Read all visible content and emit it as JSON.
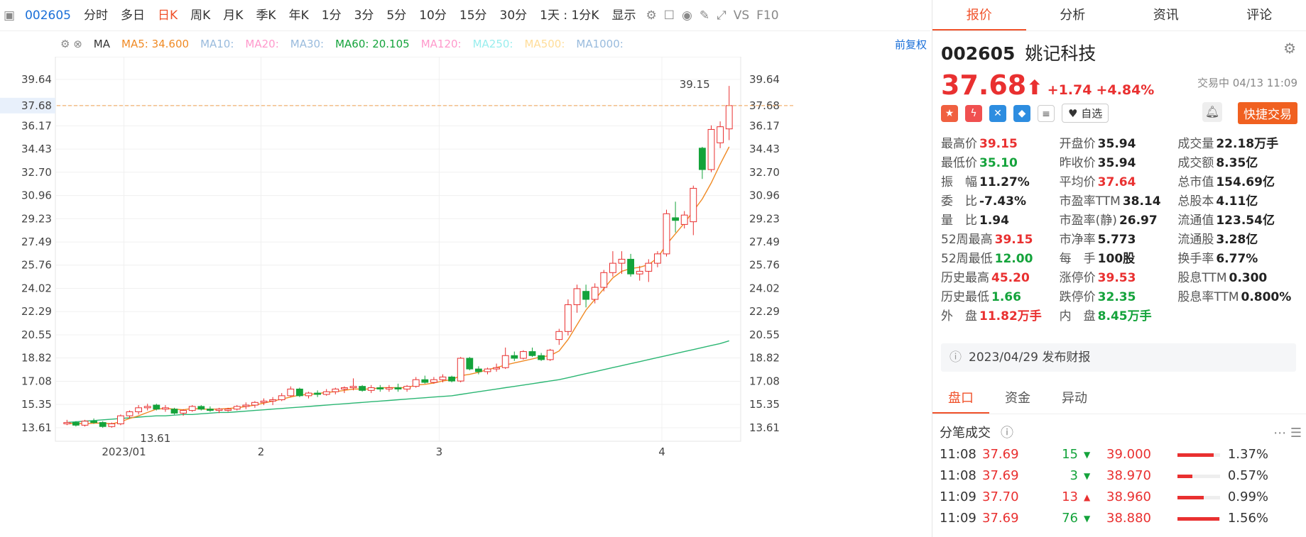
{
  "toolbar": {
    "code": "002605",
    "items": [
      "分时",
      "多日",
      "日K",
      "周K",
      "月K",
      "季K",
      "年K",
      "1分",
      "3分",
      "5分",
      "10分",
      "15分",
      "30分"
    ],
    "active": "日K",
    "range": "1天 : 1分K",
    "display": "显示",
    "vs": "VS",
    "f10": "F10"
  },
  "ma": {
    "name": "MA",
    "ma5": "MA5: 34.600",
    "ma10": "MA10:",
    "ma20": "MA20:",
    "ma30": "MA30:",
    "ma60": "MA60: 20.105",
    "ma120": "MA120:",
    "ma250": "MA250:",
    "ma500": "MA500:",
    "ma1000": "MA1000:",
    "adjust": "前复权"
  },
  "chart": {
    "yticks": [
      "39.64",
      "37.68",
      "36.17",
      "34.43",
      "32.70",
      "30.96",
      "29.23",
      "27.49",
      "25.76",
      "24.02",
      "22.29",
      "20.55",
      "18.82",
      "17.08",
      "15.35",
      "13.61"
    ],
    "xticks": [
      "2023/01",
      "2",
      "3",
      "4"
    ],
    "current": "37.68",
    "high_label": "39.15",
    "low_label": "13.61",
    "colors": {
      "up": "#e93030",
      "down": "#14a33b",
      "ma5": "#f08a24",
      "ma60": "#2bb673",
      "current": "#f0a050"
    }
  },
  "chart_data": {
    "type": "candlestick",
    "yrange": [
      12.6,
      40.8
    ],
    "xlabels": [
      "2023/01",
      "2",
      "3",
      "4"
    ],
    "candles": [
      [
        13.9,
        14.2,
        13.8,
        14.0
      ],
      [
        14.0,
        14.1,
        13.7,
        13.8
      ],
      [
        13.8,
        14.2,
        13.7,
        14.1
      ],
      [
        14.1,
        14.3,
        13.9,
        14.0
      ],
      [
        14.0,
        14.1,
        13.6,
        13.7
      ],
      [
        13.7,
        14.0,
        13.61,
        13.9
      ],
      [
        13.9,
        14.6,
        13.8,
        14.5
      ],
      [
        14.5,
        14.9,
        14.3,
        14.8
      ],
      [
        14.8,
        15.3,
        14.6,
        15.1
      ],
      [
        15.1,
        15.4,
        14.9,
        15.2
      ],
      [
        15.3,
        15.4,
        14.9,
        15.0
      ],
      [
        15.0,
        15.3,
        14.8,
        15.1
      ],
      [
        15.0,
        15.1,
        14.6,
        14.7
      ],
      [
        14.7,
        15.0,
        14.5,
        14.9
      ],
      [
        14.9,
        15.3,
        14.8,
        15.2
      ],
      [
        15.2,
        15.3,
        14.9,
        15.0
      ],
      [
        15.0,
        15.2,
        14.8,
        14.9
      ],
      [
        14.9,
        15.1,
        14.7,
        15.0
      ],
      [
        14.9,
        15.1,
        14.8,
        15.0
      ],
      [
        15.0,
        15.3,
        14.9,
        15.2
      ],
      [
        15.2,
        15.5,
        15.0,
        15.3
      ],
      [
        15.3,
        15.6,
        15.1,
        15.5
      ],
      [
        15.5,
        15.8,
        15.3,
        15.6
      ],
      [
        15.6,
        15.9,
        15.3,
        15.7
      ],
      [
        15.7,
        16.2,
        15.6,
        16.0
      ],
      [
        16.0,
        16.7,
        15.9,
        16.5
      ],
      [
        16.5,
        16.6,
        15.9,
        16.0
      ],
      [
        16.0,
        16.3,
        15.8,
        16.2
      ],
      [
        16.2,
        16.4,
        15.9,
        16.1
      ],
      [
        16.1,
        16.5,
        16.0,
        16.3
      ],
      [
        16.3,
        16.6,
        16.1,
        16.5
      ],
      [
        16.5,
        16.7,
        16.2,
        16.6
      ],
      [
        16.6,
        17.3,
        16.4,
        16.7
      ],
      [
        16.7,
        16.8,
        16.3,
        16.4
      ],
      [
        16.4,
        16.8,
        16.2,
        16.6
      ],
      [
        16.6,
        16.8,
        16.3,
        16.5
      ],
      [
        16.5,
        16.8,
        16.3,
        16.6
      ],
      [
        16.6,
        16.9,
        16.3,
        16.5
      ],
      [
        16.5,
        16.8,
        16.3,
        16.7
      ],
      [
        16.7,
        17.4,
        16.6,
        17.2
      ],
      [
        17.2,
        17.5,
        16.9,
        17.0
      ],
      [
        17.0,
        17.4,
        16.9,
        17.2
      ],
      [
        17.2,
        17.6,
        17.0,
        17.4
      ],
      [
        17.4,
        17.5,
        17.0,
        17.1
      ],
      [
        17.1,
        18.9,
        17.0,
        18.8
      ],
      [
        18.8,
        18.9,
        17.9,
        18.0
      ],
      [
        18.0,
        18.2,
        17.6,
        17.8
      ],
      [
        17.8,
        18.1,
        17.6,
        18.0
      ],
      [
        18.0,
        18.4,
        17.8,
        18.1
      ],
      [
        18.1,
        19.6,
        18.0,
        19.0
      ],
      [
        19.0,
        19.3,
        18.6,
        18.8
      ],
      [
        18.8,
        19.4,
        18.7,
        19.3
      ],
      [
        19.3,
        19.6,
        18.9,
        19.0
      ],
      [
        19.0,
        19.2,
        18.6,
        18.7
      ],
      [
        18.7,
        19.5,
        18.6,
        19.4
      ],
      [
        20.2,
        21.0,
        19.8,
        20.8
      ],
      [
        20.8,
        23.2,
        20.5,
        22.8
      ],
      [
        22.8,
        24.3,
        22.2,
        24.0
      ],
      [
        23.8,
        24.3,
        22.6,
        23.2
      ],
      [
        23.2,
        24.4,
        22.9,
        24.1
      ],
      [
        24.1,
        25.4,
        23.8,
        25.2
      ],
      [
        25.2,
        26.8,
        24.9,
        25.9
      ],
      [
        25.9,
        26.8,
        25.1,
        26.2
      ],
      [
        26.2,
        26.6,
        24.9,
        25.1
      ],
      [
        25.1,
        25.7,
        24.6,
        25.3
      ],
      [
        25.3,
        26.2,
        24.5,
        25.9
      ],
      [
        25.9,
        26.8,
        25.6,
        26.6
      ],
      [
        26.6,
        29.9,
        26.4,
        29.6
      ],
      [
        29.3,
        30.5,
        28.2,
        29.1
      ],
      [
        28.8,
        29.8,
        28.5,
        29.5
      ],
      [
        29.0,
        31.7,
        28.0,
        31.5
      ],
      [
        34.5,
        34.6,
        32.2,
        32.9
      ],
      [
        32.9,
        36.2,
        32.7,
        35.9
      ],
      [
        34.9,
        36.5,
        34.5,
        36.1
      ],
      [
        35.94,
        39.15,
        35.1,
        37.68
      ]
    ],
    "ma5": [
      13.9,
      13.95,
      13.9,
      13.95,
      13.95,
      13.9,
      14.05,
      14.3,
      14.5,
      14.75,
      15.0,
      15.05,
      15.0,
      14.95,
      15.05,
      15.0,
      15.0,
      15.0,
      15.05,
      15.1,
      15.2,
      15.3,
      15.45,
      15.6,
      15.75,
      15.9,
      16.05,
      16.1,
      16.15,
      16.25,
      16.3,
      16.4,
      16.5,
      16.5,
      16.5,
      16.6,
      16.6,
      16.6,
      16.6,
      16.8,
      16.85,
      16.95,
      17.1,
      17.2,
      17.5,
      17.6,
      17.75,
      17.95,
      18.1,
      18.3,
      18.45,
      18.6,
      18.75,
      18.9,
      19.0,
      19.35,
      20.2,
      21.3,
      22.4,
      23.2,
      24.0,
      24.8,
      25.3,
      25.5,
      25.6,
      25.8,
      26.3,
      27.3,
      28.1,
      28.9,
      29.8,
      30.7,
      31.9,
      33.3,
      34.6
    ],
    "ma60": [
      14.0,
      14.05,
      14.1,
      14.15,
      14.2,
      14.25,
      14.3,
      14.35,
      14.4,
      14.45,
      14.5,
      14.5,
      14.55,
      14.6,
      14.6,
      14.65,
      14.7,
      14.75,
      14.75,
      14.8,
      14.85,
      14.9,
      14.95,
      15.0,
      15.05,
      15.1,
      15.15,
      15.2,
      15.25,
      15.3,
      15.35,
      15.4,
      15.45,
      15.5,
      15.55,
      15.6,
      15.65,
      15.7,
      15.75,
      15.8,
      15.85,
      15.9,
      15.95,
      16.0,
      16.1,
      16.2,
      16.3,
      16.4,
      16.5,
      16.6,
      16.7,
      16.8,
      16.9,
      17.0,
      17.1,
      17.2,
      17.35,
      17.5,
      17.65,
      17.8,
      17.95,
      18.1,
      18.25,
      18.4,
      18.55,
      18.7,
      18.85,
      19.0,
      19.15,
      19.3,
      19.45,
      19.6,
      19.75,
      19.9,
      20.105
    ]
  },
  "quote": {
    "code": "002605",
    "name": "姚记科技",
    "price": "37.68",
    "arrow": "⬆",
    "change": "+1.74",
    "pct": "+4.84%",
    "status": "交易中 04/13 11:09",
    "fav": "自选",
    "quick": "快捷交易",
    "stats": [
      [
        [
          "最高价",
          "39.15",
          "up"
        ],
        [
          "开盘价",
          "35.94",
          ""
        ],
        [
          "成交量",
          "22.18万手",
          ""
        ]
      ],
      [
        [
          "最低价",
          "35.10",
          "dn"
        ],
        [
          "昨收价",
          "35.94",
          ""
        ],
        [
          "成交额",
          "8.35亿",
          ""
        ]
      ],
      [
        [
          "振　幅",
          "11.27%",
          ""
        ],
        [
          "平均价",
          "37.64",
          "up"
        ],
        [
          "总市值",
          "154.69亿",
          ""
        ]
      ],
      [
        [
          "委　比",
          "-7.43%",
          ""
        ],
        [
          "市盈率TTM",
          "38.14",
          ""
        ],
        [
          "总股本",
          "4.11亿",
          ""
        ]
      ],
      [
        [
          "量　比",
          "1.94",
          ""
        ],
        [
          "市盈率(静)",
          "26.97",
          ""
        ],
        [
          "流通值",
          "123.54亿",
          ""
        ]
      ],
      [
        [
          "52周最高",
          "39.15",
          "up"
        ],
        [
          "市净率",
          "5.773",
          ""
        ],
        [
          "流通股",
          "3.28亿",
          ""
        ]
      ],
      [
        [
          "52周最低",
          "12.00",
          "dn"
        ],
        [
          "每　手",
          "100股",
          ""
        ],
        [
          "换手率",
          "6.77%",
          ""
        ]
      ],
      [
        [
          "历史最高",
          "45.20",
          "up"
        ],
        [
          "涨停价",
          "39.53",
          "up"
        ],
        [
          "股息TTM",
          "0.300",
          ""
        ]
      ],
      [
        [
          "历史最低",
          "1.66",
          "dn"
        ],
        [
          "跌停价",
          "32.35",
          "dn"
        ],
        [
          "股息率TTM",
          "0.800%",
          ""
        ]
      ],
      [
        [
          "外　盘",
          "11.82万手",
          "up"
        ],
        [
          "内　盘",
          "8.45万手",
          "dn"
        ],
        [
          "",
          "",
          " "
        ]
      ]
    ],
    "notice": "2023/04/29  发布财报"
  },
  "rtabs": [
    "报价",
    "分析",
    "资讯",
    "评论"
  ],
  "btabs": [
    "盘口",
    "资金",
    "异动"
  ],
  "ticks_title": "分笔成交",
  "ticks": [
    [
      "11:08",
      "37.69",
      "15",
      "down",
      "39.000",
      "1.37%"
    ],
    [
      "11:08",
      "37.69",
      "3",
      "down",
      "38.970",
      "0.57%"
    ],
    [
      "11:09",
      "37.70",
      "13",
      "up",
      "38.960",
      "0.99%"
    ],
    [
      "11:09",
      "37.69",
      "76",
      "down",
      "38.880",
      "1.56%"
    ]
  ]
}
